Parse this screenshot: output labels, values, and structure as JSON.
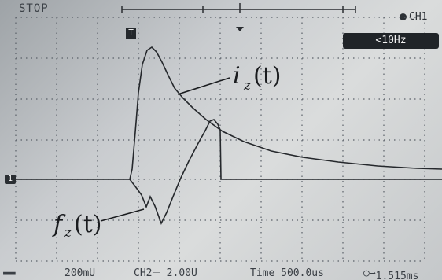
{
  "status": "STOP",
  "channel_label": "CH1",
  "frequency_filter": "<10Hz",
  "trigger_marker": "T",
  "ground_marker": "1",
  "trace_labels": {
    "current": "i",
    "current_sub": "z",
    "current_suffix": "(t)",
    "force": "f",
    "force_sub": "z",
    "force_suffix": "(t)"
  },
  "footer": {
    "ch1_scale": "200mU",
    "ch2_scale": "CH2⎓ 2.00U",
    "time_scale": "Time 500.0us",
    "trigger_pos": "1.515ms"
  },
  "colors": {
    "trace": "#2a2d31",
    "grid": "#5a6068",
    "screen_bg": "#d2d4d5"
  }
}
